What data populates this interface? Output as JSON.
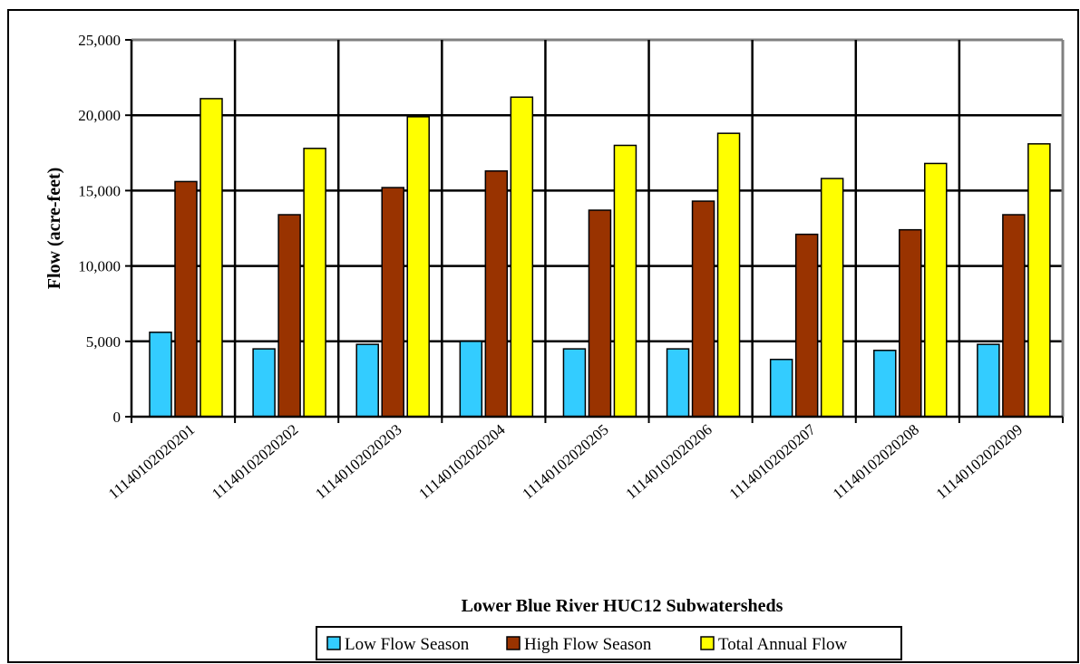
{
  "chart_data": {
    "type": "bar",
    "categories": [
      "11140102020201",
      "11140102020202",
      "11140102020203",
      "11140102020204",
      "11140102020205",
      "11140102020206",
      "11140102020207",
      "11140102020208",
      "11140102020209"
    ],
    "series": [
      {
        "name": "Low Flow Season",
        "color": "#33ccff",
        "values": [
          5600,
          4500,
          4800,
          5000,
          4500,
          4500,
          3800,
          4400,
          4800
        ]
      },
      {
        "name": "High Flow Season",
        "color": "#993300",
        "values": [
          15600,
          13400,
          15200,
          16300,
          13700,
          14300,
          12100,
          12400,
          13400
        ]
      },
      {
        "name": "Total Annual Flow",
        "color": "#ffff00",
        "values": [
          21100,
          17800,
          19900,
          21200,
          18000,
          18800,
          15800,
          16800,
          18100
        ]
      }
    ],
    "xlabel": "Lower Blue River HUC12 Subwatersheds",
    "ylabel": "Flow (acre-feet)",
    "ylim": [
      0,
      25000
    ],
    "yticks": [
      0,
      5000,
      10000,
      15000,
      20000,
      25000
    ],
    "ytick_labels": [
      "0",
      "5,000",
      "10,000",
      "15,000",
      "20,000",
      "25,000"
    ],
    "grid": true,
    "legend_position": "bottom"
  }
}
